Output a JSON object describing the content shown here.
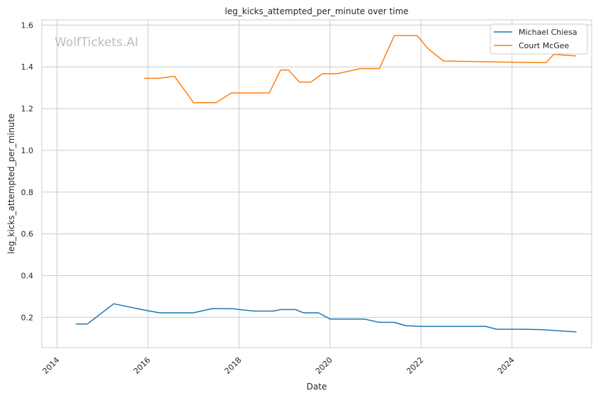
{
  "watermark": "WolfTickets.AI",
  "chart_data": {
    "type": "line",
    "title": "leg_kicks_attempted_per_minute over time",
    "xlabel": "Date",
    "ylabel": "leg_kicks_attempted_per_minute",
    "x_ticks": [
      "2014",
      "2016",
      "2018",
      "2020",
      "2022",
      "2024"
    ],
    "y_ticks": [
      "0.2",
      "0.4",
      "0.6",
      "0.8",
      "1.0",
      "1.2",
      "1.4",
      "1.6"
    ],
    "xlim": [
      "2013-09-01",
      "2025-10-01"
    ],
    "ylim": [
      0.055,
      1.625
    ],
    "grid": true,
    "legend": "top-right",
    "series": [
      {
        "name": "Michael Chiesa",
        "color": "#1f77b4",
        "points": [
          [
            "2014-06-01",
            0.168
          ],
          [
            "2014-09-01",
            0.168
          ],
          [
            "2015-04-01",
            0.265
          ],
          [
            "2015-12-01",
            0.235
          ],
          [
            "2016-04-01",
            0.222
          ],
          [
            "2017-01-01",
            0.222
          ],
          [
            "2017-06-01",
            0.242
          ],
          [
            "2017-11-01",
            0.242
          ],
          [
            "2018-05-01",
            0.23
          ],
          [
            "2018-10-01",
            0.23
          ],
          [
            "2018-12-01",
            0.237
          ],
          [
            "2019-04-01",
            0.237
          ],
          [
            "2019-06-01",
            0.222
          ],
          [
            "2019-10-01",
            0.222
          ],
          [
            "2020-01-01",
            0.192
          ],
          [
            "2020-10-01",
            0.192
          ],
          [
            "2021-02-01",
            0.176
          ],
          [
            "2021-06-01",
            0.176
          ],
          [
            "2021-09-01",
            0.16
          ],
          [
            "2022-01-01",
            0.157
          ],
          [
            "2023-06-01",
            0.157
          ],
          [
            "2023-09-01",
            0.143
          ],
          [
            "2024-04-01",
            0.143
          ],
          [
            "2024-09-01",
            0.141
          ],
          [
            "2025-06-01",
            0.13
          ]
        ]
      },
      {
        "name": "Court McGee",
        "color": "#ff7f0e",
        "points": [
          [
            "2015-12-01",
            1.345
          ],
          [
            "2016-04-01",
            1.345
          ],
          [
            "2016-08-01",
            1.355
          ],
          [
            "2017-01-01",
            1.228
          ],
          [
            "2017-07-01",
            1.228
          ],
          [
            "2017-11-01",
            1.275
          ],
          [
            "2018-09-01",
            1.275
          ],
          [
            "2018-12-01",
            1.385
          ],
          [
            "2019-02-01",
            1.385
          ],
          [
            "2019-05-01",
            1.327
          ],
          [
            "2019-08-01",
            1.327
          ],
          [
            "2019-11-01",
            1.367
          ],
          [
            "2020-03-01",
            1.367
          ],
          [
            "2020-09-01",
            1.392
          ],
          [
            "2021-02-01",
            1.392
          ],
          [
            "2021-06-01",
            1.55
          ],
          [
            "2021-12-01",
            1.55
          ],
          [
            "2022-03-01",
            1.485
          ],
          [
            "2022-07-01",
            1.428
          ],
          [
            "2023-09-01",
            1.423
          ],
          [
            "2024-10-01",
            1.42
          ],
          [
            "2024-12-01",
            1.46
          ],
          [
            "2025-06-01",
            1.452
          ]
        ]
      }
    ]
  }
}
